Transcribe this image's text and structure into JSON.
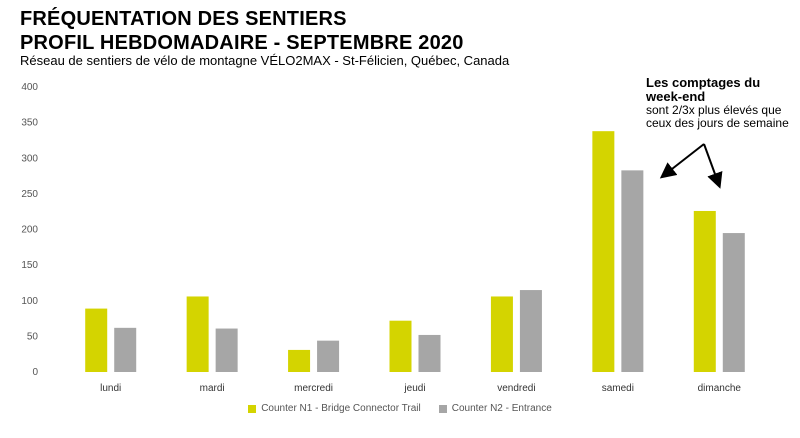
{
  "header": {
    "title_line1": "FRÉQUENTATION DES SENTIERS",
    "title_line2": "PROFIL HEBDOMADAIRE - SEPTEMBRE 2020",
    "subtitle": "Réseau de sentiers de vélo de montagne VÉLO2MAX  - St-Félicien, Québec, Canada"
  },
  "annotation": {
    "heading": "Les comptages du week-end",
    "body": "sont 2/3x plus élevés que ceux des jours de semaine"
  },
  "colors": {
    "series1": "#d4d400",
    "series2": "#a6a6a6",
    "arrow": "#000000"
  },
  "chart_data": {
    "type": "bar",
    "categories": [
      "lundi",
      "mardi",
      "mercredi",
      "jeudi",
      "vendredi",
      "samedi",
      "dimanche"
    ],
    "series": [
      {
        "name": "Counter N1 - Bridge Connector Trail",
        "values": [
          89,
          106,
          31,
          72,
          106,
          338,
          226
        ]
      },
      {
        "name": "Counter N2 - Entrance",
        "values": [
          62,
          61,
          44,
          52,
          115,
          283,
          195
        ]
      }
    ],
    "ylim": [
      0,
      400
    ],
    "yticks": [
      0,
      50,
      100,
      150,
      200,
      250,
      300,
      350,
      400
    ],
    "grid": false,
    "legend_position": "bottom-center"
  }
}
